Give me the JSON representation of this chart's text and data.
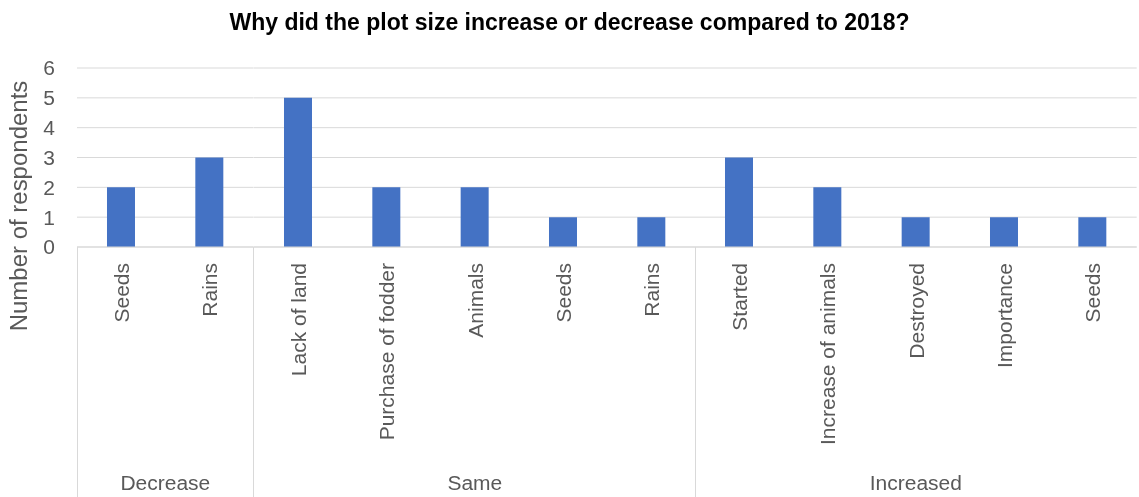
{
  "chart_data": [
    {
      "type": "bar",
      "xlabel": "Decrease",
      "ylabel": "Number of respondents",
      "categories": [
        "Seeds",
        "Rains"
      ],
      "values": [
        2,
        3
      ],
      "color": "#4472c4",
      "ylim": [
        0,
        6
      ],
      "yticks": [
        0,
        1,
        2,
        3,
        4,
        5,
        6
      ],
      "grid": "y"
    },
    {
      "type": "bar",
      "title": "Why did the plot size increase or decrease compared to 2018?",
      "xlabel": "Same",
      "categories": [
        "Lack of land",
        "Purchase of fodder",
        "Animals",
        "Seeds",
        "Rains"
      ],
      "values": [
        5,
        2,
        2,
        1,
        1
      ],
      "color": "#4472c4",
      "ylim": [
        0,
        6
      ],
      "yticks": [
        0,
        1,
        2,
        3,
        4,
        5,
        6
      ],
      "grid": "y",
      "tick_labels": "x"
    },
    {
      "type": "bar",
      "xlabel": "Increased",
      "categories": [
        "Started",
        "Increase of animals",
        "Destroyed",
        "Importance",
        "Seeds"
      ],
      "values": [
        3,
        2,
        1,
        1,
        1
      ],
      "color": "#4472c4",
      "ylim": [
        0,
        6
      ],
      "yticks": [
        0,
        1,
        2,
        3,
        4,
        5,
        6
      ],
      "grid": "y",
      "tick_labels": "x"
    }
  ]
}
